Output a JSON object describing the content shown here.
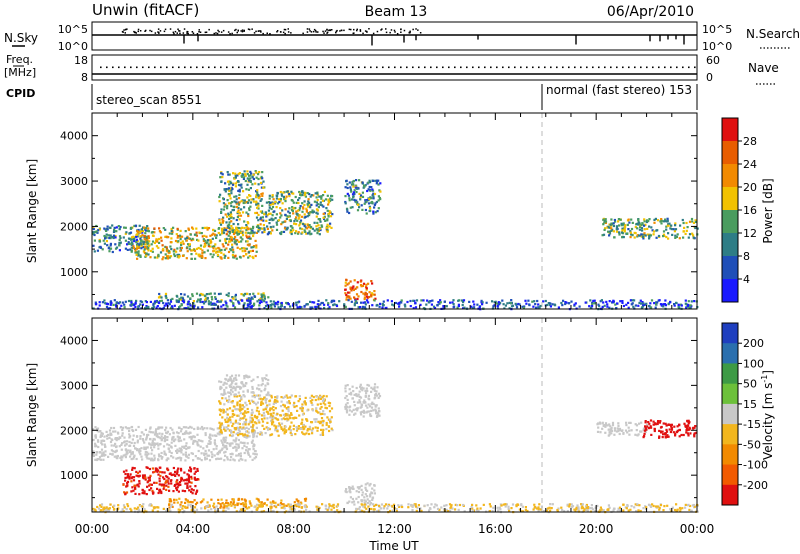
{
  "header": {
    "station": "Unwin (fitACF)",
    "beam": "Beam 13",
    "date": "06/Apr/2010"
  },
  "top_strip": {
    "left_label": "N.Sky",
    "right_label": "N.Search",
    "left_ticks": [
      "10^5",
      "10^0"
    ],
    "right_ticks": [
      "10^5",
      "10^0"
    ]
  },
  "freq_strip": {
    "left_label_1": "Freq.",
    "left_label_2": "[MHz]",
    "right_label": "Nave",
    "left_ticks": [
      "18",
      "8"
    ],
    "right_ticks": [
      "60",
      "0"
    ]
  },
  "cpid": {
    "label": "CPID",
    "segments": [
      {
        "name": "stereo_scan 8551",
        "start_hour": 0
      },
      {
        "name": "normal (fast stereo) 153",
        "start_hour": 18
      }
    ]
  },
  "colors": {
    "background": "#ffffff",
    "axis": "#000000",
    "dashed_line": "#bbbbbb"
  },
  "chart_data": [
    {
      "type": "heatmap",
      "name": "Power",
      "xlabel": "",
      "ylabel": "Slant Range [km]",
      "xlim": [
        0,
        24
      ],
      "ylim": [
        180,
        4500
      ],
      "y_ticks": [
        "1000",
        "2000",
        "3000",
        "4000"
      ],
      "colorbar": {
        "label": "Power [dB]",
        "tick_labels": [
          "4",
          "8",
          "12",
          "16",
          "20",
          "24",
          "28"
        ],
        "colors": [
          "#1a1aff",
          "#1f4fb8",
          "#2e7d86",
          "#4a9c5f",
          "#f2c200",
          "#f28a00",
          "#e85d00",
          "#e01010"
        ],
        "range": [
          0,
          32
        ]
      },
      "features": [
        {
          "start_hour": 0.0,
          "end_hour": 2.2,
          "range_from": 1450,
          "range_to": 2050,
          "level": 10
        },
        {
          "start_hour": 1.5,
          "end_hour": 6.5,
          "range_from": 1300,
          "range_to": 2000,
          "level": 18
        },
        {
          "start_hour": 5.0,
          "end_hour": 9.5,
          "range_from": 1850,
          "range_to": 2800,
          "level": 14
        },
        {
          "start_hour": 5.0,
          "end_hour": 6.8,
          "range_from": 2800,
          "range_to": 3250,
          "level": 12
        },
        {
          "start_hour": 10.0,
          "end_hour": 11.4,
          "range_from": 2300,
          "range_to": 3050,
          "level": 10
        },
        {
          "start_hour": 10.0,
          "end_hour": 11.2,
          "range_from": 400,
          "range_to": 850,
          "level": 26
        },
        {
          "start_hour": 2.5,
          "end_hour": 7.0,
          "range_from": 350,
          "range_to": 550,
          "level": 12
        },
        {
          "start_hour": 0.0,
          "end_hour": 24.0,
          "range_from": 200,
          "range_to": 400,
          "level": 6
        },
        {
          "start_hour": 20.2,
          "end_hour": 24.0,
          "range_from": 1750,
          "range_to": 2200,
          "level": 14
        }
      ]
    },
    {
      "type": "heatmap",
      "name": "Velocity",
      "xlabel": "Time UT",
      "ylabel": "Slant Range [km]",
      "xlim": [
        0,
        24
      ],
      "ylim": [
        180,
        4500
      ],
      "x_ticks": [
        "00:00",
        "04:00",
        "08:00",
        "12:00",
        "16:00",
        "20:00",
        "00:00"
      ],
      "y_ticks": [
        "1000",
        "2000",
        "3000",
        "4000"
      ],
      "colorbar": {
        "label": "Velocity [m s",
        "label_exponent": "-1",
        "label_close": "]",
        "tick_labels": [
          "200",
          "100",
          "50",
          "15",
          "-15",
          "-50",
          "-100",
          "-200"
        ],
        "colors": [
          "#1f3fbf",
          "#2a6fae",
          "#3d9a45",
          "#6cc03a",
          "#c8c8c8",
          "#f2b61e",
          "#f28a00",
          "#f25a00",
          "#e01010"
        ],
        "range": [
          -250,
          250
        ]
      },
      "features": [
        {
          "start_hour": 0.0,
          "end_hour": 6.5,
          "range_from": 1350,
          "range_to": 2100,
          "velocity": 0
        },
        {
          "start_hour": 5.0,
          "end_hour": 9.5,
          "range_from": 1900,
          "range_to": 2800,
          "velocity": -40
        },
        {
          "start_hour": 5.0,
          "end_hour": 7.0,
          "range_from": 2800,
          "range_to": 3250,
          "velocity": 0
        },
        {
          "start_hour": 10.0,
          "end_hour": 11.4,
          "range_from": 2300,
          "range_to": 3050,
          "velocity": 0
        },
        {
          "start_hour": 1.2,
          "end_hour": 4.2,
          "range_from": 600,
          "range_to": 1200,
          "velocity": -210
        },
        {
          "start_hour": 3.0,
          "end_hour": 8.5,
          "range_from": 300,
          "range_to": 500,
          "velocity": -90
        },
        {
          "start_hour": 10.0,
          "end_hour": 11.2,
          "range_from": 400,
          "range_to": 850,
          "velocity": 0
        },
        {
          "start_hour": 0.0,
          "end_hour": 24.0,
          "range_from": 200,
          "range_to": 380,
          "velocity": -30
        },
        {
          "start_hour": 20.0,
          "end_hour": 22.0,
          "range_from": 1900,
          "range_to": 2200,
          "velocity": 0
        },
        {
          "start_hour": 21.8,
          "end_hour": 24.0,
          "range_from": 1850,
          "range_to": 2250,
          "velocity": -220
        }
      ]
    }
  ]
}
